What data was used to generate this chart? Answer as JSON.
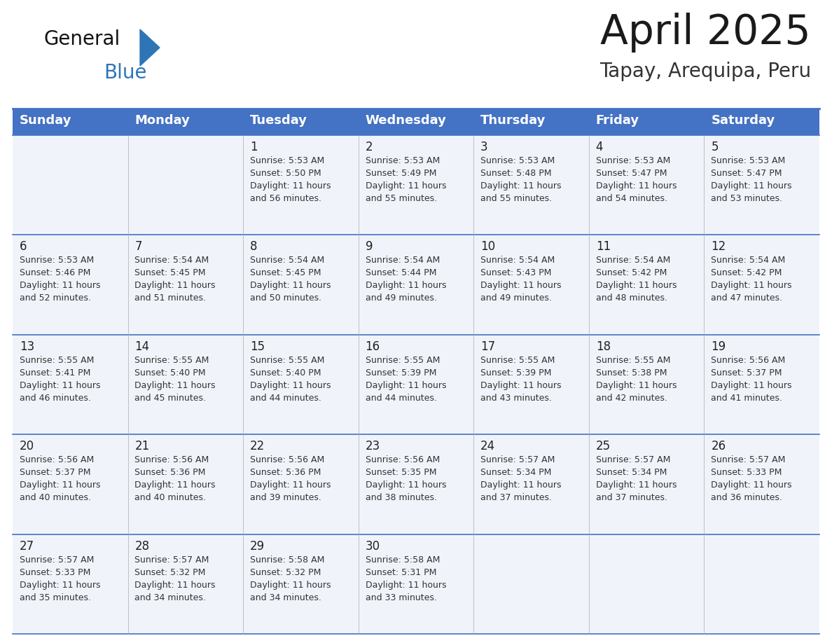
{
  "title": "April 2025",
  "subtitle": "Tapay, Arequipa, Peru",
  "days_of_week": [
    "Sunday",
    "Monday",
    "Tuesday",
    "Wednesday",
    "Thursday",
    "Friday",
    "Saturday"
  ],
  "header_bg": "#4472C4",
  "header_text": "#FFFFFF",
  "row_bg": "#F0F4FA",
  "cell_text_color": "#333333",
  "day_number_color": "#222222",
  "grid_line_color": "#4472C4",
  "title_color": "#1a1a1a",
  "subtitle_color": "#333333",
  "logo_general_color": "#111111",
  "logo_blue_color": "#2E75B6",
  "calendar": [
    [
      {
        "day": "",
        "info": ""
      },
      {
        "day": "",
        "info": ""
      },
      {
        "day": "1",
        "info": "Sunrise: 5:53 AM\nSunset: 5:50 PM\nDaylight: 11 hours\nand 56 minutes."
      },
      {
        "day": "2",
        "info": "Sunrise: 5:53 AM\nSunset: 5:49 PM\nDaylight: 11 hours\nand 55 minutes."
      },
      {
        "day": "3",
        "info": "Sunrise: 5:53 AM\nSunset: 5:48 PM\nDaylight: 11 hours\nand 55 minutes."
      },
      {
        "day": "4",
        "info": "Sunrise: 5:53 AM\nSunset: 5:47 PM\nDaylight: 11 hours\nand 54 minutes."
      },
      {
        "day": "5",
        "info": "Sunrise: 5:53 AM\nSunset: 5:47 PM\nDaylight: 11 hours\nand 53 minutes."
      }
    ],
    [
      {
        "day": "6",
        "info": "Sunrise: 5:53 AM\nSunset: 5:46 PM\nDaylight: 11 hours\nand 52 minutes."
      },
      {
        "day": "7",
        "info": "Sunrise: 5:54 AM\nSunset: 5:45 PM\nDaylight: 11 hours\nand 51 minutes."
      },
      {
        "day": "8",
        "info": "Sunrise: 5:54 AM\nSunset: 5:45 PM\nDaylight: 11 hours\nand 50 minutes."
      },
      {
        "day": "9",
        "info": "Sunrise: 5:54 AM\nSunset: 5:44 PM\nDaylight: 11 hours\nand 49 minutes."
      },
      {
        "day": "10",
        "info": "Sunrise: 5:54 AM\nSunset: 5:43 PM\nDaylight: 11 hours\nand 49 minutes."
      },
      {
        "day": "11",
        "info": "Sunrise: 5:54 AM\nSunset: 5:42 PM\nDaylight: 11 hours\nand 48 minutes."
      },
      {
        "day": "12",
        "info": "Sunrise: 5:54 AM\nSunset: 5:42 PM\nDaylight: 11 hours\nand 47 minutes."
      }
    ],
    [
      {
        "day": "13",
        "info": "Sunrise: 5:55 AM\nSunset: 5:41 PM\nDaylight: 11 hours\nand 46 minutes."
      },
      {
        "day": "14",
        "info": "Sunrise: 5:55 AM\nSunset: 5:40 PM\nDaylight: 11 hours\nand 45 minutes."
      },
      {
        "day": "15",
        "info": "Sunrise: 5:55 AM\nSunset: 5:40 PM\nDaylight: 11 hours\nand 44 minutes."
      },
      {
        "day": "16",
        "info": "Sunrise: 5:55 AM\nSunset: 5:39 PM\nDaylight: 11 hours\nand 44 minutes."
      },
      {
        "day": "17",
        "info": "Sunrise: 5:55 AM\nSunset: 5:39 PM\nDaylight: 11 hours\nand 43 minutes."
      },
      {
        "day": "18",
        "info": "Sunrise: 5:55 AM\nSunset: 5:38 PM\nDaylight: 11 hours\nand 42 minutes."
      },
      {
        "day": "19",
        "info": "Sunrise: 5:56 AM\nSunset: 5:37 PM\nDaylight: 11 hours\nand 41 minutes."
      }
    ],
    [
      {
        "day": "20",
        "info": "Sunrise: 5:56 AM\nSunset: 5:37 PM\nDaylight: 11 hours\nand 40 minutes."
      },
      {
        "day": "21",
        "info": "Sunrise: 5:56 AM\nSunset: 5:36 PM\nDaylight: 11 hours\nand 40 minutes."
      },
      {
        "day": "22",
        "info": "Sunrise: 5:56 AM\nSunset: 5:36 PM\nDaylight: 11 hours\nand 39 minutes."
      },
      {
        "day": "23",
        "info": "Sunrise: 5:56 AM\nSunset: 5:35 PM\nDaylight: 11 hours\nand 38 minutes."
      },
      {
        "day": "24",
        "info": "Sunrise: 5:57 AM\nSunset: 5:34 PM\nDaylight: 11 hours\nand 37 minutes."
      },
      {
        "day": "25",
        "info": "Sunrise: 5:57 AM\nSunset: 5:34 PM\nDaylight: 11 hours\nand 37 minutes."
      },
      {
        "day": "26",
        "info": "Sunrise: 5:57 AM\nSunset: 5:33 PM\nDaylight: 11 hours\nand 36 minutes."
      }
    ],
    [
      {
        "day": "27",
        "info": "Sunrise: 5:57 AM\nSunset: 5:33 PM\nDaylight: 11 hours\nand 35 minutes."
      },
      {
        "day": "28",
        "info": "Sunrise: 5:57 AM\nSunset: 5:32 PM\nDaylight: 11 hours\nand 34 minutes."
      },
      {
        "day": "29",
        "info": "Sunrise: 5:58 AM\nSunset: 5:32 PM\nDaylight: 11 hours\nand 34 minutes."
      },
      {
        "day": "30",
        "info": "Sunrise: 5:58 AM\nSunset: 5:31 PM\nDaylight: 11 hours\nand 33 minutes."
      },
      {
        "day": "",
        "info": ""
      },
      {
        "day": "",
        "info": ""
      },
      {
        "day": "",
        "info": ""
      }
    ]
  ]
}
